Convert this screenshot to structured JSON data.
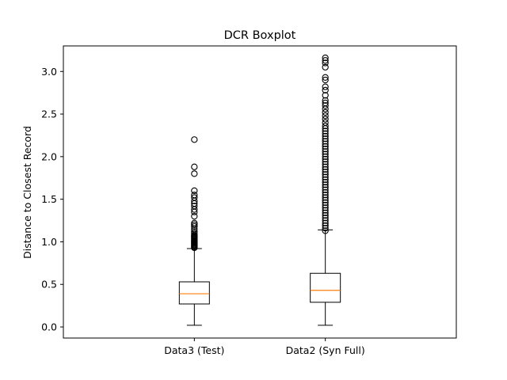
{
  "chart_data": {
    "type": "boxplot",
    "title": "DCR Boxplot",
    "xlabel": "",
    "ylabel": "Distance to Closest Record",
    "ylim": [
      -0.13,
      3.3
    ],
    "yticks": [
      0.0,
      0.5,
      1.0,
      1.5,
      2.0,
      2.5,
      3.0
    ],
    "ytick_labels": [
      "0.0",
      "0.5",
      "1.0",
      "1.5",
      "2.0",
      "2.5",
      "3.0"
    ],
    "grid": false,
    "categories": [
      "Data3 (Test)",
      "Data2 (Syn Full)"
    ],
    "boxes": [
      {
        "label": "Data3 (Test)",
        "whisker_low": 0.02,
        "q1": 0.27,
        "median": 0.39,
        "q3": 0.53,
        "whisker_high": 0.92,
        "outliers": [
          0.93,
          0.94,
          0.95,
          0.96,
          0.97,
          0.98,
          0.99,
          1.0,
          1.01,
          1.02,
          1.03,
          1.04,
          1.05,
          1.06,
          1.07,
          1.08,
          1.1,
          1.12,
          1.15,
          1.18,
          1.2,
          1.22,
          1.3,
          1.35,
          1.38,
          1.42,
          1.45,
          1.48,
          1.52,
          1.55,
          1.6,
          1.8,
          1.88,
          2.2
        ]
      },
      {
        "label": "Data2 (Syn Full)",
        "whisker_low": 0.02,
        "q1": 0.29,
        "median": 0.43,
        "q3": 0.63,
        "whisker_high": 1.14,
        "outliers": [
          1.13,
          1.16,
          1.19,
          1.22,
          1.25,
          1.28,
          1.31,
          1.34,
          1.37,
          1.4,
          1.43,
          1.46,
          1.49,
          1.52,
          1.55,
          1.58,
          1.61,
          1.64,
          1.67,
          1.7,
          1.73,
          1.76,
          1.79,
          1.82,
          1.85,
          1.88,
          1.91,
          1.94,
          1.97,
          2.0,
          2.03,
          2.06,
          2.09,
          2.12,
          2.15,
          2.18,
          2.21,
          2.24,
          2.27,
          2.3,
          2.33,
          2.36,
          2.4,
          2.44,
          2.48,
          2.52,
          2.56,
          2.6,
          2.63,
          2.66,
          2.72,
          2.78,
          2.82,
          2.9,
          2.93,
          3.05,
          3.1,
          3.13,
          3.16
        ]
      }
    ],
    "colors": {
      "box": "#000000",
      "median": "#ff7f0e",
      "outlier": "#000000"
    }
  }
}
